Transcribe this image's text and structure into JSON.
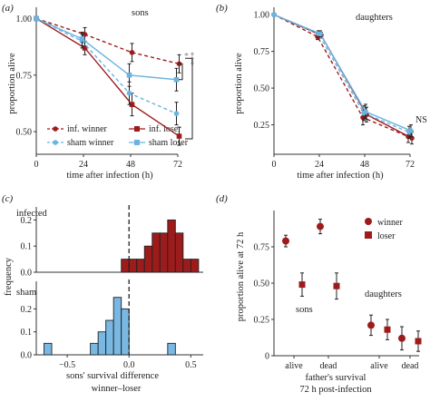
{
  "chart_data": [
    {
      "panel": "(a)",
      "type": "line",
      "annotation": "sons",
      "xlabel": "time after infection (h)",
      "ylabel": "proportion alive",
      "x": [
        0,
        24,
        48,
        72
      ],
      "xlim": [
        0,
        72
      ],
      "ylim": [
        0.4,
        1.05
      ],
      "yticks": [
        0.5,
        0.75,
        1.0
      ],
      "ytick_labels": [
        "0.50",
        "0.75",
        "1.00"
      ],
      "xtick_labels": [
        "0",
        "24",
        "48",
        "72"
      ],
      "series": [
        {
          "name": "inf. winner",
          "color": "#9e1b1b",
          "dash": "dashed",
          "marker": "circle",
          "values": [
            1.0,
            0.93,
            0.85,
            0.8
          ],
          "err": [
            0,
            0.03,
            0.04,
            0.04
          ]
        },
        {
          "name": "inf. loser",
          "color": "#9e1b1b",
          "dash": "solid",
          "marker": "square",
          "values": [
            1.0,
            0.87,
            0.62,
            0.48
          ],
          "err": [
            0,
            0.03,
            0.05,
            0.04
          ]
        },
        {
          "name": "sham winner",
          "color": "#6ab4e0",
          "dash": "dashed",
          "marker": "circle",
          "values": [
            1.0,
            0.9,
            0.67,
            0.58
          ],
          "err": [
            0,
            0.03,
            0.05,
            0.05
          ]
        },
        {
          "name": "sham loser",
          "color": "#6ab4e0",
          "dash": "solid",
          "marker": "square",
          "values": [
            1.0,
            0.91,
            0.75,
            0.73
          ],
          "err": [
            0,
            0.03,
            0.05,
            0.05
          ]
        }
      ],
      "sig_labels": [
        "*",
        "***"
      ]
    },
    {
      "panel": "(b)",
      "type": "line",
      "annotation": "daughters",
      "xlabel": "time after infection (h)",
      "ylabel": "proportion alive",
      "x": [
        0,
        24,
        48,
        72
      ],
      "xlim": [
        0,
        72
      ],
      "ylim": [
        0.05,
        1.05
      ],
      "yticks": [
        0.25,
        0.5,
        0.75,
        1.0
      ],
      "ytick_labels": [
        "0.25",
        "0.50",
        "0.75",
        "1.00"
      ],
      "xtick_labels": [
        "0",
        "24",
        "48",
        "72"
      ],
      "series": [
        {
          "name": "inf. winner",
          "color": "#9e1b1b",
          "dash": "dashed",
          "values": [
            1.0,
            0.85,
            0.3,
            0.17
          ],
          "err": [
            0,
            0.02,
            0.05,
            0.04
          ]
        },
        {
          "name": "inf. loser",
          "color": "#9e1b1b",
          "dash": "solid",
          "values": [
            1.0,
            0.86,
            0.32,
            0.16
          ],
          "err": [
            0,
            0.02,
            0.05,
            0.04
          ]
        },
        {
          "name": "sham winner",
          "color": "#6ab4e0",
          "dash": "dashed",
          "values": [
            1.0,
            0.87,
            0.33,
            0.2
          ],
          "err": [
            0,
            0.02,
            0.05,
            0.04
          ]
        },
        {
          "name": "sham loser",
          "color": "#6ab4e0",
          "dash": "solid",
          "values": [
            1.0,
            0.87,
            0.34,
            0.21
          ],
          "err": [
            0,
            0.02,
            0.05,
            0.04
          ]
        }
      ],
      "sig_labels": [
        "NS"
      ]
    },
    {
      "panel": "(c)",
      "type": "bar",
      "xlabel": "sons' survival difference",
      "xlabel2": "winner–loser",
      "ylabel": "frequency",
      "xlim": [
        -0.75,
        0.6
      ],
      "xtick_values": [
        -0.5,
        0.0,
        0.5
      ],
      "xtick_labels": [
        "−0.5",
        "0.0",
        "0.5"
      ],
      "bin_width": 0.0625,
      "subplots": [
        {
          "label": "infected",
          "color": "#9e1b1b",
          "ylim": [
            0,
            0.25
          ],
          "yticks": [
            0.0,
            0.1,
            0.2
          ],
          "ytick_labels": [
            "0.0",
            "0.1",
            "0.2"
          ],
          "bin_starts": [
            -0.0625,
            0.0,
            0.0625,
            0.125,
            0.1875,
            0.25,
            0.3125,
            0.375,
            0.4375,
            0.5
          ],
          "values": [
            0.05,
            0.05,
            0.05,
            0.1,
            0.15,
            0.15,
            0.2,
            0.15,
            0.05,
            0.05
          ]
        },
        {
          "label": "sham",
          "color": "#79b8e3",
          "ylim": [
            0,
            0.32
          ],
          "yticks": [
            0.0,
            0.1,
            0.2
          ],
          "ytick_labels": [
            "0.0",
            "0.1",
            "0.2"
          ],
          "bin_starts": [
            -0.6875,
            -0.625,
            -0.5625,
            -0.5,
            -0.4375,
            -0.375,
            -0.3125,
            -0.25,
            -0.1875,
            -0.125,
            -0.0625,
            0.0,
            0.0625,
            0.125,
            0.1875,
            0.25,
            0.3125
          ],
          "values": [
            0.05,
            0,
            0,
            0,
            0,
            0,
            0.05,
            0.1,
            0.15,
            0.25,
            0.2,
            0,
            0,
            0,
            0,
            0,
            0.05
          ]
        }
      ]
    },
    {
      "panel": "(d)",
      "type": "scatter",
      "ylabel": "proportion alive at 72 h",
      "xlabel": "father's survival",
      "xlabel2": "72 h post-infection",
      "ylim": [
        0,
        1.0
      ],
      "yticks": [
        0,
        0.25,
        0.5,
        0.75
      ],
      "ytick_labels": [
        "0",
        "0.25",
        "0.50",
        "0.75"
      ],
      "categories": [
        "alive",
        "dead",
        "alive",
        "dead"
      ],
      "group_labels": [
        "sons",
        "daughters"
      ],
      "series": [
        {
          "name": "winner",
          "color": "#9e1b1b",
          "marker": "circle",
          "values": [
            0.79,
            0.89,
            0.21,
            0.12
          ],
          "err": [
            0.04,
            0.05,
            0.07,
            0.08
          ]
        },
        {
          "name": "loser",
          "color": "#9e1b1b",
          "marker": "square",
          "values": [
            0.49,
            0.48,
            0.18,
            0.1
          ],
          "err": [
            0.08,
            0.09,
            0.07,
            0.07
          ]
        }
      ]
    }
  ]
}
